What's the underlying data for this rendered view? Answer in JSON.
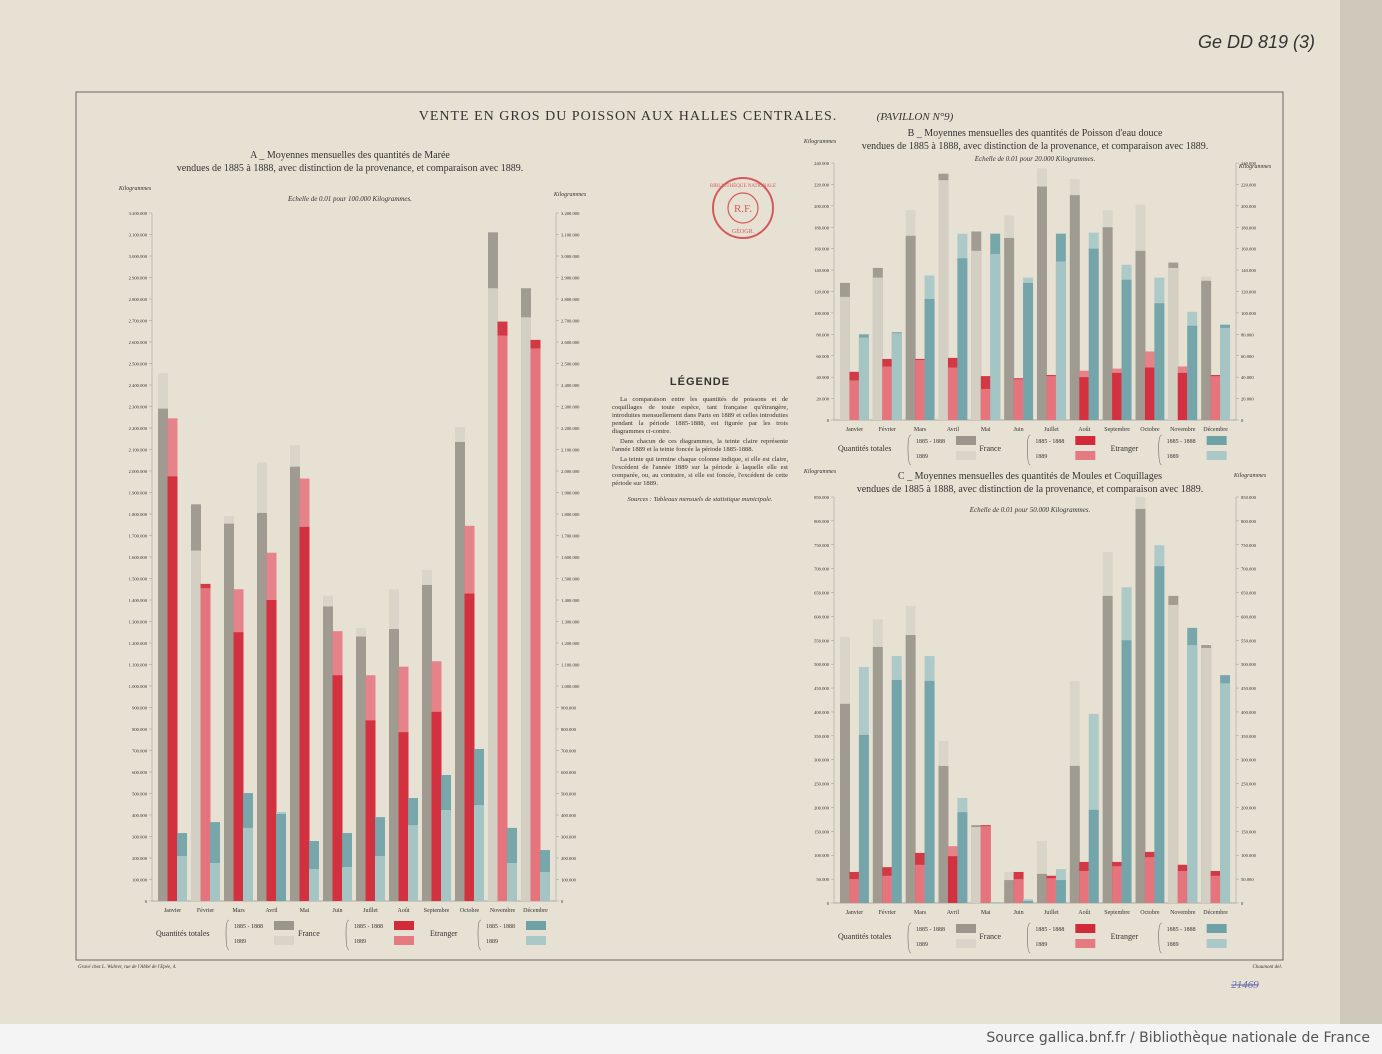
{
  "page": {
    "call_number": "Ge DD 819 (3)",
    "title": "VENTE EN GROS DU POISSON AUX HALLES CENTRALES.",
    "title_note": "(PAVILLON N°9)",
    "stamp": [
      "BIBLIOTHÈQUE NATIONALE",
      "R.F.",
      "GÉOGR."
    ],
    "legend_heading": "LÉGENDE",
    "legend_paragraphs": [
      "La comparaison entre les quantités de poissons et de coquillages de toute espèce, tant française qu'étrangère, introduites mensuellement dans Paris en 1889 et celles introduites pendant la période 1885-1888, est figurée par les trois diagrammes ci-contre.",
      "Dans chacun de ces diagrammes, la teinte claire représente l'année 1889 et la teinte foncée la période 1885-1888.",
      "La teinte qui termine chaque colonne indique, si elle est claire, l'excédent de l'année 1889 sur la période à laquelle elle est comparée, ou, au contraire, si elle est foncée, l'excédent de cette période sur 1889."
    ],
    "sources": "Sources : Tableaux mensuels de statistique municipale.",
    "engraver": "Gravé chez L. Wuhrer, rue de l'Abbé de l'Epée, 4.",
    "draftsman": "Chaumont del.",
    "inventory": "21469",
    "footer": "Source gallica.bnf.fr / Bibliothèque nationale de France"
  },
  "chart_data": [
    {
      "type": "bar",
      "title": "A _ Moyennes mensuelles des quantités de Marée",
      "subtitle": "vendues de 1885 à 1888, avec distinction de la provenance, et comparaison avec 1889.",
      "scale_note": "Echelle de 0.01 pour 100.000 Kilogrammes.",
      "ylabel": "Kilogrammes",
      "categories": [
        "Janvier",
        "Février",
        "Mars",
        "Avril",
        "Mai",
        "Juin",
        "Juillet",
        "Août",
        "Septembre",
        "Octobre",
        "Novembre",
        "Décembre"
      ],
      "ylim": [
        0,
        3200000
      ],
      "yticks": [
        0,
        {
          "value": 100000,
          "label": "100.000"
        },
        {
          "value": 200000,
          "label": "200.000"
        },
        {
          "value": 300000,
          "label": "300.000"
        },
        {
          "value": 400000,
          "label": "400.000"
        },
        {
          "value": 500000,
          "label": "500.000"
        },
        {
          "value": 600000,
          "label": "600.000"
        },
        {
          "value": 700000,
          "label": "700.000"
        },
        {
          "value": 800000,
          "label": "800.000"
        },
        {
          "value": 900000,
          "label": "900.000"
        },
        {
          "value": 1000000,
          "label": "1.000.000"
        },
        {
          "value": 1100000,
          "label": "1.100.000"
        },
        {
          "value": 1200000,
          "label": "1.200.000"
        },
        {
          "value": 1300000,
          "label": "1.300.000"
        },
        {
          "value": 1400000,
          "label": "1.400.000"
        },
        {
          "value": 1500000,
          "label": "1.500.000"
        },
        {
          "value": 1600000,
          "label": "1.600.000"
        },
        {
          "value": 1700000,
          "label": "1.700.000"
        },
        {
          "value": 1800000,
          "label": "1.800.000"
        },
        {
          "value": 1900000,
          "label": "1.900.000"
        },
        {
          "value": 2000000,
          "label": "2.000.000"
        },
        {
          "value": 2100000,
          "label": "2.100.000"
        },
        {
          "value": 2200000,
          "label": "2.200.000"
        },
        {
          "value": 2300000,
          "label": "2.300.000"
        },
        {
          "value": 2400000,
          "label": "2.400.000"
        },
        {
          "value": 2500000,
          "label": "2.500.000"
        },
        {
          "value": 2600000,
          "label": "2.600.000"
        },
        {
          "value": 2700000,
          "label": "2.700.000"
        },
        {
          "value": 2800000,
          "label": "2.800.000"
        },
        {
          "value": 2900000,
          "label": "2.900.000"
        },
        {
          "value": 3000000,
          "label": "3.000.000"
        },
        {
          "value": 3100000,
          "label": "3.100.000"
        },
        {
          "value": 3200000,
          "label": "3.200.000"
        }
      ],
      "series": [
        {
          "group": "Quantités totales",
          "name": "1885 - 1888",
          "color": "#9a968b",
          "values": [
            2290000,
            1845000,
            1755000,
            1805000,
            2020000,
            1370000,
            1230000,
            1265000,
            1470000,
            2135000,
            3110000,
            2850000
          ]
        },
        {
          "group": "Quantités totales",
          "name": "1889",
          "color": "#d8d4c8",
          "values": [
            2455000,
            1630000,
            1790000,
            2040000,
            2120000,
            1420000,
            1270000,
            1450000,
            1540000,
            2205000,
            2850000,
            2715000
          ]
        },
        {
          "group": "France",
          "name": "1885 - 1888",
          "color": "#d12a38",
          "values": [
            1975000,
            1475000,
            1250000,
            1400000,
            1740000,
            1050000,
            840000,
            785000,
            880000,
            1430000,
            2695000,
            2610000
          ]
        },
        {
          "group": "France",
          "name": "1889",
          "color": "#e67a82",
          "values": [
            2245000,
            1455000,
            1450000,
            1620000,
            1965000,
            1255000,
            1050000,
            1090000,
            1115000,
            1745000,
            2630000,
            2570000
          ]
        },
        {
          "group": "Etranger",
          "name": "1885 - 1888",
          "color": "#6ea2a7",
          "values": [
            316000,
            367000,
            502000,
            405000,
            279000,
            316000,
            390000,
            479000,
            586000,
            707000,
            340000,
            237000
          ]
        },
        {
          "group": "Etranger",
          "name": "1889",
          "color": "#a9c8c7",
          "values": [
            209000,
            177000,
            340000,
            414000,
            149000,
            158000,
            209000,
            353000,
            423000,
            446000,
            177000,
            135000
          ]
        }
      ]
    },
    {
      "type": "bar",
      "title": "B _ Moyennes mensuelles des quantités de Poisson d'eau douce",
      "subtitle": "vendues de 1885 à 1888, avec distinction de la provenance, et comparaison avec 1889.",
      "scale_note": "Echelle de 0.01 pour 20.000 Kilogrammes.",
      "ylabel": "Kilogrammes",
      "categories": [
        "Janvier",
        "Février",
        "Mars",
        "Avril",
        "Mai",
        "Juin",
        "Juillet",
        "Août",
        "Septembre",
        "Octobre",
        "Novembre",
        "Décembre"
      ],
      "ylim": [
        0,
        240000
      ],
      "yticks": [
        0,
        {
          "value": 20000,
          "label": "20.000"
        },
        {
          "value": 40000,
          "label": "40.000"
        },
        {
          "value": 60000,
          "label": "60.000"
        },
        {
          "value": 80000,
          "label": "80.000"
        },
        {
          "value": 100000,
          "label": "100.000"
        },
        {
          "value": 120000,
          "label": "120.000"
        },
        {
          "value": 140000,
          "label": "140.000"
        },
        {
          "value": 160000,
          "label": "160.000"
        },
        {
          "value": 180000,
          "label": "180.000"
        },
        {
          "value": 200000,
          "label": "200.000"
        },
        {
          "value": 220000,
          "label": "220.000"
        },
        {
          "value": 240000,
          "label": "240.000"
        }
      ],
      "series": [
        {
          "group": "Quantités totales",
          "name": "1885 - 1888",
          "color": "#9a968b",
          "values": [
            128000,
            142000,
            172000,
            230000,
            176000,
            170000,
            218000,
            210000,
            180000,
            158000,
            147000,
            130000
          ]
        },
        {
          "group": "Quantités totales",
          "name": "1889",
          "color": "#d8d4c8",
          "values": [
            115000,
            133000,
            196000,
            224000,
            158000,
            191000,
            235000,
            225000,
            196000,
            201000,
            142000,
            134000
          ]
        },
        {
          "group": "France",
          "name": "1885 - 1888",
          "color": "#d12a38",
          "values": [
            45000,
            57000,
            57000,
            58000,
            41000,
            39000,
            42000,
            40000,
            44000,
            49000,
            44000,
            42000
          ]
        },
        {
          "group": "France",
          "name": "1889",
          "color": "#e67a82",
          "values": [
            37000,
            50000,
            56000,
            49000,
            29000,
            38000,
            41000,
            46000,
            48000,
            64000,
            50000,
            41000
          ]
        },
        {
          "group": "Etranger",
          "name": "1885 - 1888",
          "color": "#6ea2a7",
          "values": [
            80000,
            82000,
            113000,
            151000,
            174000,
            128000,
            174000,
            160000,
            131000,
            109000,
            88000,
            89000
          ]
        },
        {
          "group": "Etranger",
          "name": "1889",
          "color": "#a9c8c7",
          "values": [
            77000,
            81000,
            135000,
            174000,
            155000,
            133000,
            148000,
            175000,
            145000,
            133000,
            101000,
            86000
          ]
        }
      ]
    },
    {
      "type": "bar",
      "title": "C _ Moyennes mensuelles des quantités de Moules et Coquillages",
      "subtitle": "vendues de 1885 à 1888, avec distinction de la provenance, et comparaison avec 1889.",
      "scale_note": "Echelle de 0.01 pour 50.000 Kilogrammes.",
      "ylabel": "Kilogrammes",
      "categories": [
        "Janvier",
        "Février",
        "Mars",
        "Avril",
        "Mai",
        "Juin",
        "Juillet",
        "Août",
        "Septembre",
        "Octobre",
        "Novembre",
        "Décembre"
      ],
      "ylim": [
        0,
        850000
      ],
      "yticks": [
        0,
        {
          "value": 50000,
          "label": "50.000"
        },
        {
          "value": 100000,
          "label": "100.000"
        },
        {
          "value": 150000,
          "label": "150.000"
        },
        {
          "value": 200000,
          "label": "200.000"
        },
        {
          "value": 250000,
          "label": "250.000"
        },
        {
          "value": 300000,
          "label": "300.000"
        },
        {
          "value": 350000,
          "label": "350.000"
        },
        {
          "value": 400000,
          "label": "400.000"
        },
        {
          "value": 450000,
          "label": "450.000"
        },
        {
          "value": 500000,
          "label": "500.000"
        },
        {
          "value": 550000,
          "label": "550.000"
        },
        {
          "value": 600000,
          "label": "600.000"
        },
        {
          "value": 650000,
          "label": "650.000"
        },
        {
          "value": 700000,
          "label": "700.000"
        },
        {
          "value": 750000,
          "label": "750.000"
        },
        {
          "value": 800000,
          "label": "800.000"
        },
        {
          "value": 850000,
          "label": "850.000"
        }
      ],
      "series": [
        {
          "group": "Quantités totales",
          "name": "1885 - 1888",
          "color": "#9a968b",
          "values": [
            417000,
            536000,
            561000,
            287000,
            163000,
            48000,
            61000,
            287000,
            643000,
            825000,
            643000,
            540000
          ]
        },
        {
          "group": "Quantités totales",
          "name": "1889",
          "color": "#d8d4c8",
          "values": [
            557000,
            594000,
            622000,
            339000,
            159000,
            65000,
            130000,
            465000,
            735000,
            850000,
            624000,
            534000
          ]
        },
        {
          "group": "France",
          "name": "1885 - 1888",
          "color": "#d12a38",
          "values": [
            65000,
            75000,
            105000,
            98000,
            163000,
            65000,
            57000,
            86000,
            86000,
            107000,
            80000,
            67000
          ]
        },
        {
          "group": "France",
          "name": "1889",
          "color": "#e67a82",
          "values": [
            50000,
            57000,
            80000,
            119000,
            161000,
            50000,
            52000,
            67000,
            77000,
            96000,
            67000,
            57000
          ]
        },
        {
          "group": "Etranger",
          "name": "1885 - 1888",
          "color": "#6ea2a7",
          "values": [
            352000,
            467000,
            465000,
            190000,
            2000,
            4000,
            48000,
            195000,
            550000,
            705000,
            576000,
            477000
          ]
        },
        {
          "group": "Etranger",
          "name": "1889",
          "color": "#a9c8c7",
          "values": [
            494000,
            517000,
            517000,
            220000,
            2000,
            8000,
            71000,
            396000,
            661000,
            749000,
            540000,
            460000
          ]
        }
      ]
    }
  ]
}
